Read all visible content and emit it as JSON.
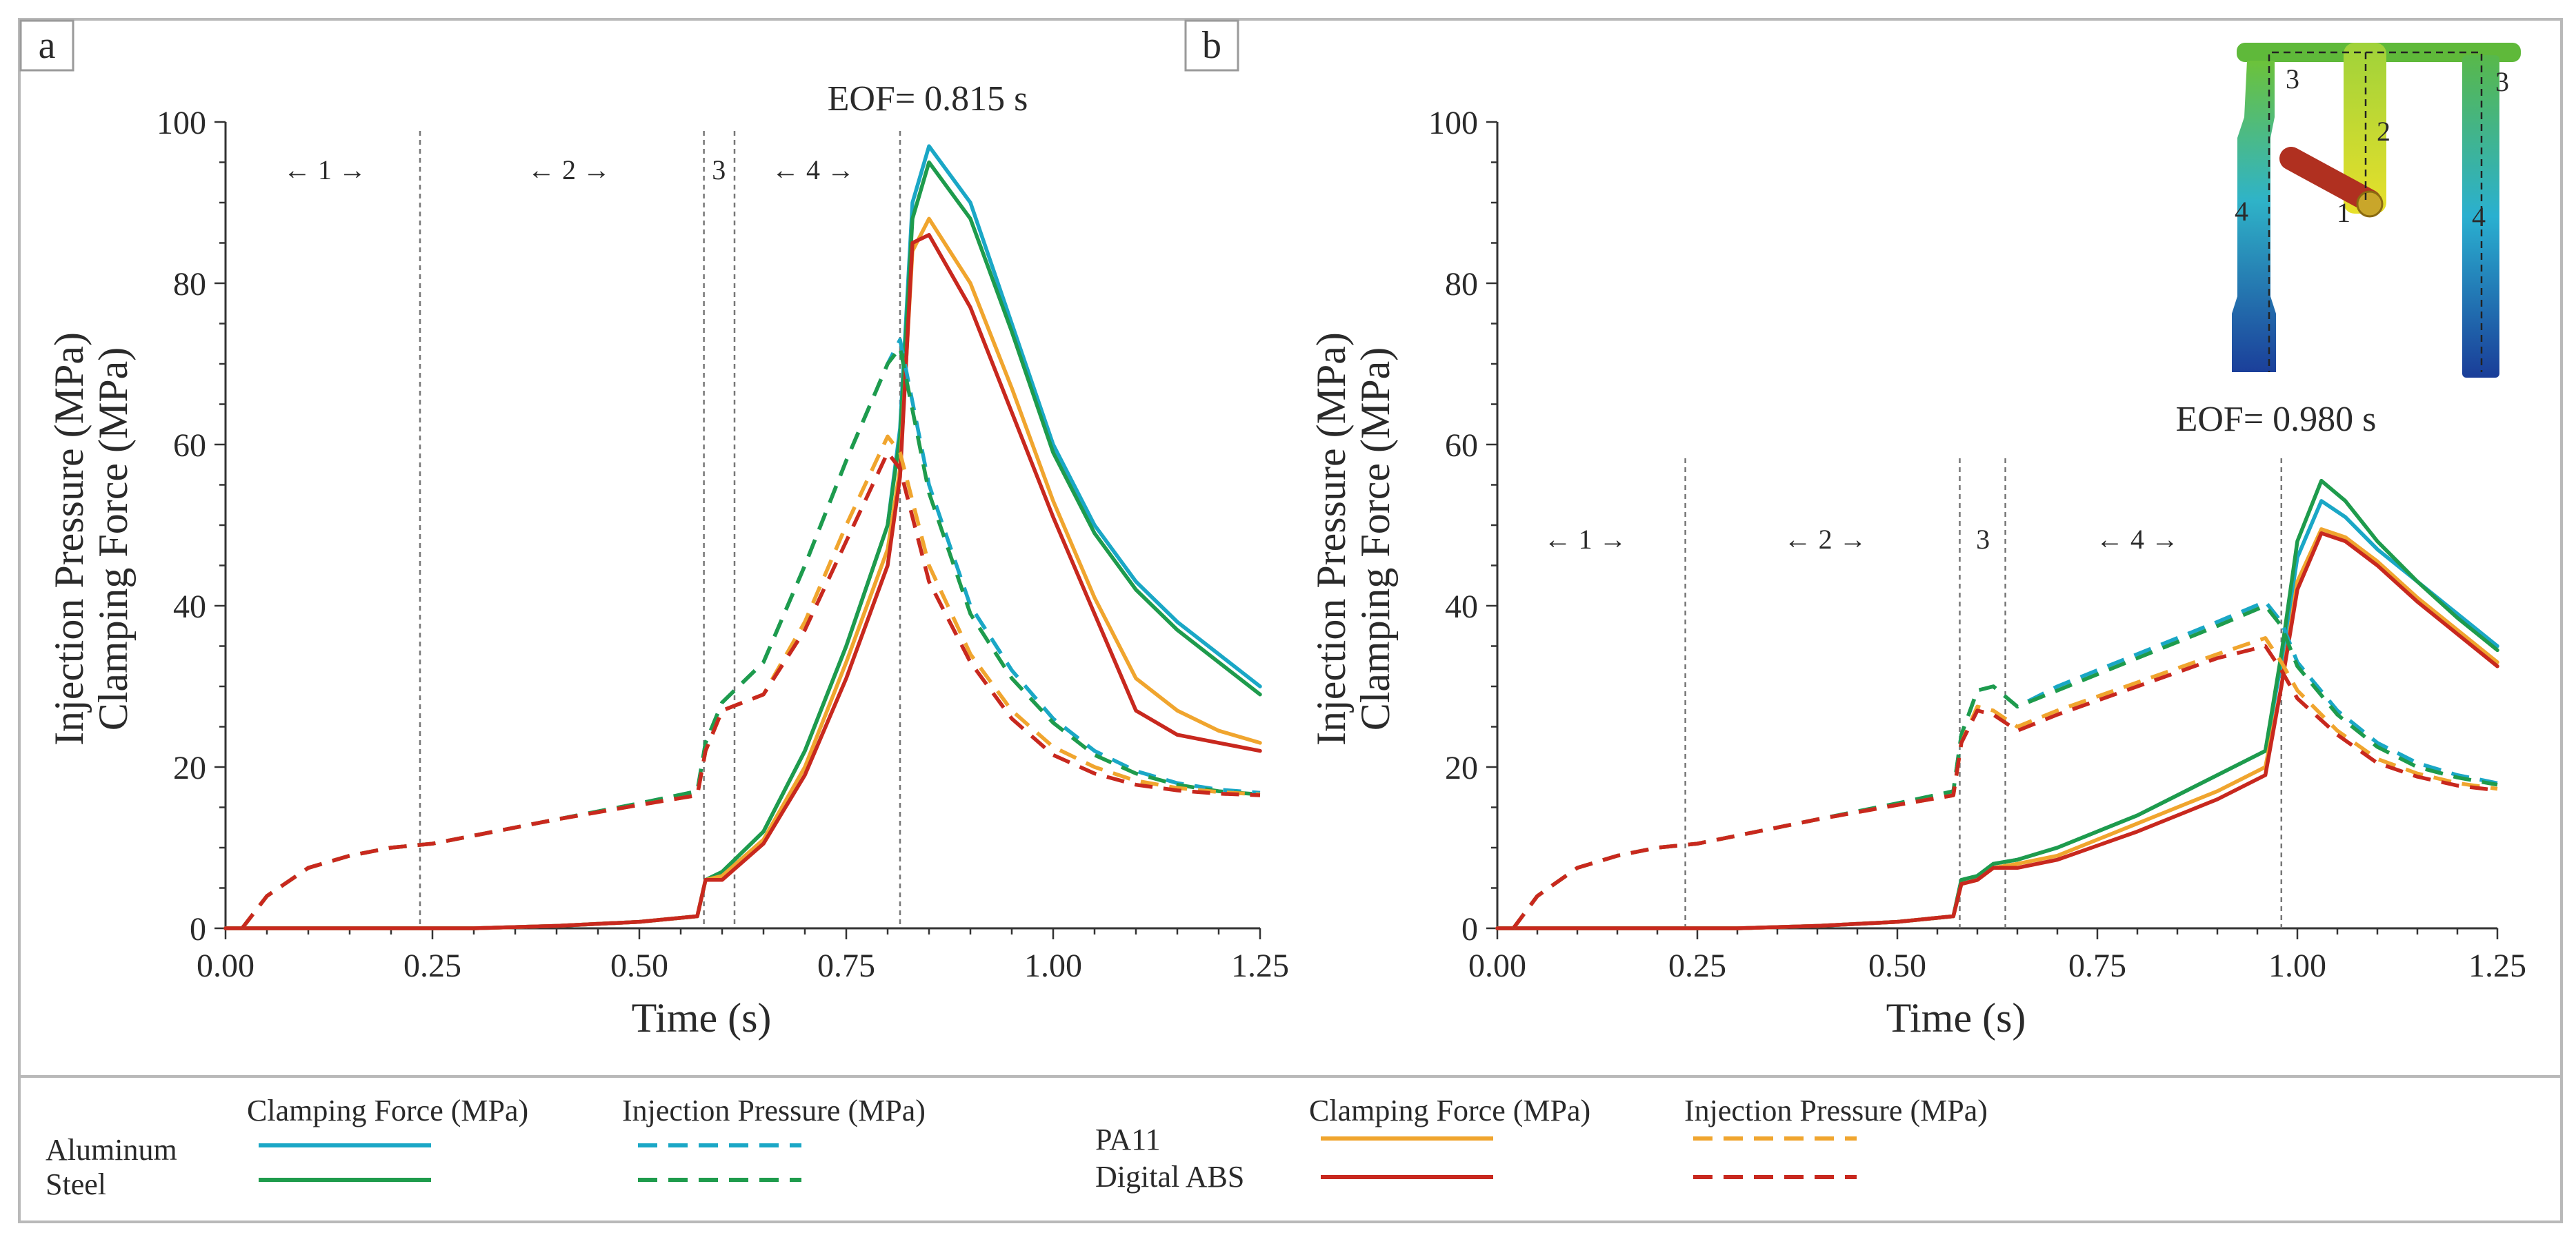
{
  "chart_data": [
    {
      "panel": "a",
      "type": "line",
      "eof_label": "EOF= 0.815 s",
      "xlabel": "Time (s)",
      "ylabel": [
        "Injection Pressure (MPa)",
        "Clamping Force (MPa)"
      ],
      "xlim": [
        0,
        1.25
      ],
      "ylim": [
        0,
        100
      ],
      "xticks": [
        "0.00",
        "0.25",
        "0.50",
        "0.75",
        "1.00",
        "1.25"
      ],
      "yticks": [
        "0",
        "20",
        "40",
        "60",
        "80",
        "100"
      ],
      "phase_lines": [
        0.235,
        0.578,
        0.615,
        0.815
      ],
      "phases": [
        {
          "label": "1",
          "x": 0.12
        },
        {
          "label": "2",
          "x": 0.415
        },
        {
          "label": "3",
          "x": 0.596
        },
        {
          "label": "4",
          "x": 0.71
        }
      ],
      "series": [
        {
          "name": "Aluminum Clamping Force (MPa)",
          "color": "#1aa7c6",
          "dash": false,
          "x": [
            0,
            0.2,
            0.3,
            0.4,
            0.5,
            0.57,
            0.58,
            0.6,
            0.65,
            0.7,
            0.75,
            0.8,
            0.815,
            0.83,
            0.85,
            0.9,
            0.95,
            1.0,
            1.05,
            1.1,
            1.15,
            1.2,
            1.25
          ],
          "y": [
            0,
            0,
            0,
            0.3,
            0.8,
            1.5,
            6,
            7,
            12,
            22,
            35,
            50,
            62,
            90,
            97,
            90,
            75,
            60,
            50,
            43,
            38,
            34,
            30
          ]
        },
        {
          "name": "Steel Clamping Force (MPa)",
          "color": "#1e9b4c",
          "dash": false,
          "x": [
            0,
            0.2,
            0.3,
            0.4,
            0.5,
            0.57,
            0.58,
            0.6,
            0.65,
            0.7,
            0.75,
            0.8,
            0.815,
            0.83,
            0.85,
            0.9,
            0.95,
            1.0,
            1.05,
            1.1,
            1.15,
            1.2,
            1.25
          ],
          "y": [
            0,
            0,
            0,
            0.3,
            0.8,
            1.5,
            6,
            7,
            12,
            22,
            35,
            50,
            61,
            88,
            95,
            88,
            74,
            59,
            49,
            42,
            37,
            33,
            29
          ]
        },
        {
          "name": "PA11 Clamping Force (MPa)",
          "color": "#f0a52e",
          "dash": false,
          "x": [
            0,
            0.2,
            0.3,
            0.4,
            0.5,
            0.57,
            0.58,
            0.6,
            0.65,
            0.7,
            0.75,
            0.8,
            0.815,
            0.83,
            0.85,
            0.9,
            0.95,
            1.0,
            1.05,
            1.1,
            1.15,
            1.2,
            1.25
          ],
          "y": [
            0,
            0,
            0,
            0.3,
            0.8,
            1.5,
            6,
            6.5,
            11,
            20,
            33,
            47,
            57,
            84,
            88,
            80,
            67,
            53,
            41,
            31,
            27,
            24.5,
            23
          ]
        },
        {
          "name": "Digital ABS Clamping Force (MPa)",
          "color": "#c8281e",
          "dash": false,
          "x": [
            0,
            0.2,
            0.3,
            0.4,
            0.5,
            0.57,
            0.58,
            0.6,
            0.65,
            0.7,
            0.75,
            0.8,
            0.815,
            0.83,
            0.85,
            0.9,
            0.95,
            1.0,
            1.05,
            1.1,
            1.15,
            1.2,
            1.25
          ],
          "y": [
            0,
            0,
            0,
            0.3,
            0.8,
            1.5,
            6,
            6,
            10.5,
            19,
            31,
            45,
            56,
            85,
            86,
            77,
            64,
            51,
            39,
            27,
            24,
            23,
            22
          ]
        },
        {
          "name": "Aluminum Injection Pressure (MPa)",
          "color": "#1aa7c6",
          "dash": true,
          "x": [
            0.02,
            0.05,
            0.1,
            0.15,
            0.2,
            0.25,
            0.3,
            0.4,
            0.5,
            0.57,
            0.58,
            0.6,
            0.65,
            0.7,
            0.75,
            0.8,
            0.815,
            0.85,
            0.9,
            0.95,
            1.0,
            1.05,
            1.1,
            1.15,
            1.2,
            1.25
          ],
          "y": [
            0,
            4,
            7.5,
            9,
            10,
            10.5,
            11.5,
            13.5,
            15.5,
            17,
            23,
            28,
            33,
            45,
            58,
            70,
            73,
            55,
            40,
            32,
            26,
            22,
            19.5,
            18,
            17.2,
            16.8
          ]
        },
        {
          "name": "Steel Injection Pressure (MPa)",
          "color": "#1e9b4c",
          "dash": true,
          "x": [
            0.02,
            0.05,
            0.1,
            0.15,
            0.2,
            0.25,
            0.3,
            0.4,
            0.5,
            0.57,
            0.58,
            0.6,
            0.65,
            0.7,
            0.75,
            0.8,
            0.815,
            0.85,
            0.9,
            0.95,
            1.0,
            1.05,
            1.1,
            1.15,
            1.2,
            1.25
          ],
          "y": [
            0,
            4,
            7.5,
            9,
            10,
            10.5,
            11.5,
            13.5,
            15.5,
            17,
            23,
            28,
            33,
            45,
            58,
            70,
            72,
            54,
            39,
            31,
            25.5,
            21.5,
            19.2,
            17.8,
            17.0,
            16.6
          ]
        },
        {
          "name": "PA11 Injection Pressure (MPa)",
          "color": "#f0a52e",
          "dash": true,
          "x": [
            0.02,
            0.05,
            0.1,
            0.15,
            0.2,
            0.25,
            0.3,
            0.4,
            0.5,
            0.57,
            0.58,
            0.6,
            0.65,
            0.7,
            0.75,
            0.8,
            0.815,
            0.85,
            0.9,
            0.95,
            1.0,
            1.05,
            1.1,
            1.15,
            1.2,
            1.25
          ],
          "y": [
            0,
            4,
            7.5,
            9,
            10,
            10.5,
            11.5,
            13.5,
            15.3,
            16.5,
            22,
            27,
            29,
            38,
            50,
            61,
            59,
            45,
            34,
            27,
            22.5,
            20,
            18.3,
            17.4,
            16.9,
            16.6
          ]
        },
        {
          "name": "Digital ABS Injection Pressure (MPa)",
          "color": "#c8281e",
          "dash": true,
          "x": [
            0.02,
            0.05,
            0.1,
            0.15,
            0.2,
            0.25,
            0.3,
            0.4,
            0.5,
            0.57,
            0.58,
            0.6,
            0.65,
            0.7,
            0.75,
            0.8,
            0.815,
            0.85,
            0.9,
            0.95,
            1.0,
            1.05,
            1.1,
            1.15,
            1.2,
            1.25
          ],
          "y": [
            0,
            4,
            7.5,
            9,
            10,
            10.5,
            11.5,
            13.5,
            15.3,
            16.5,
            22,
            27,
            29,
            37,
            48,
            59,
            57,
            43,
            33,
            26,
            21.5,
            19.2,
            17.8,
            17.1,
            16.7,
            16.5
          ]
        }
      ]
    },
    {
      "panel": "b",
      "type": "line",
      "eof_label": "EOF= 0.980 s",
      "xlabel": "Time (s)",
      "ylabel": [
        "Injection Pressure (MPa)",
        "Clamping Force (MPa)"
      ],
      "xlim": [
        0,
        1.25
      ],
      "ylim": [
        0,
        100
      ],
      "xticks": [
        "0.00",
        "0.25",
        "0.50",
        "0.75",
        "1.00",
        "1.25"
      ],
      "yticks": [
        "0",
        "20",
        "40",
        "60",
        "80",
        "100"
      ],
      "phase_lines": [
        0.235,
        0.578,
        0.635,
        0.98
      ],
      "phases": [
        {
          "label": "1",
          "x": 0.11
        },
        {
          "label": "2",
          "x": 0.41
        },
        {
          "label": "3",
          "x": 0.607
        },
        {
          "label": "4",
          "x": 0.8
        }
      ],
      "inset_labels": [
        "1",
        "2",
        "3",
        "3",
        "4",
        "4"
      ],
      "series": [
        {
          "name": "Aluminum Clamping Force (MPa)",
          "color": "#1aa7c6",
          "dash": false,
          "x": [
            0,
            0.2,
            0.3,
            0.4,
            0.5,
            0.57,
            0.58,
            0.6,
            0.62,
            0.65,
            0.7,
            0.8,
            0.9,
            0.96,
            0.98,
            1.0,
            1.03,
            1.06,
            1.1,
            1.15,
            1.2,
            1.25
          ],
          "y": [
            0,
            0,
            0,
            0.3,
            0.8,
            1.5,
            6,
            6.5,
            8,
            8.5,
            10,
            14,
            19,
            22,
            33,
            46,
            53,
            51,
            47,
            43,
            39,
            35
          ]
        },
        {
          "name": "Steel Clamping Force (MPa)",
          "color": "#1e9b4c",
          "dash": false,
          "x": [
            0,
            0.2,
            0.3,
            0.4,
            0.5,
            0.57,
            0.58,
            0.6,
            0.62,
            0.65,
            0.7,
            0.8,
            0.9,
            0.96,
            0.98,
            1.0,
            1.03,
            1.06,
            1.1,
            1.15,
            1.2,
            1.25
          ],
          "y": [
            0,
            0,
            0,
            0.3,
            0.8,
            1.5,
            6,
            6.5,
            8,
            8.5,
            10,
            14,
            19,
            22,
            34,
            48,
            55.5,
            53,
            48,
            43,
            38.5,
            34.5
          ]
        },
        {
          "name": "PA11 Clamping Force (MPa)",
          "color": "#f0a52e",
          "dash": false,
          "x": [
            0,
            0.2,
            0.3,
            0.4,
            0.5,
            0.57,
            0.58,
            0.6,
            0.62,
            0.65,
            0.7,
            0.8,
            0.9,
            0.96,
            0.98,
            1.0,
            1.03,
            1.06,
            1.1,
            1.15,
            1.2,
            1.25
          ],
          "y": [
            0,
            0,
            0,
            0.3,
            0.8,
            1.5,
            5.5,
            6,
            7.5,
            8,
            9,
            13,
            17,
            20,
            30,
            43,
            49.5,
            48.5,
            45.5,
            41,
            37,
            33
          ]
        },
        {
          "name": "Digital ABS Clamping Force (MPa)",
          "color": "#c8281e",
          "dash": false,
          "x": [
            0,
            0.2,
            0.3,
            0.4,
            0.5,
            0.57,
            0.58,
            0.6,
            0.62,
            0.65,
            0.7,
            0.8,
            0.9,
            0.96,
            0.98,
            1.0,
            1.03,
            1.06,
            1.1,
            1.15,
            1.2,
            1.25
          ],
          "y": [
            0,
            0,
            0,
            0.3,
            0.8,
            1.5,
            5.5,
            6,
            7.5,
            7.5,
            8.5,
            12,
            16,
            19,
            30,
            42,
            49,
            48,
            45,
            40.5,
            36.5,
            32.5
          ]
        },
        {
          "name": "Aluminum Injection Pressure (MPa)",
          "color": "#1aa7c6",
          "dash": true,
          "x": [
            0.02,
            0.05,
            0.1,
            0.15,
            0.2,
            0.25,
            0.3,
            0.4,
            0.5,
            0.57,
            0.58,
            0.6,
            0.62,
            0.65,
            0.7,
            0.8,
            0.9,
            0.96,
            0.98,
            1.0,
            1.05,
            1.1,
            1.15,
            1.2,
            1.25
          ],
          "y": [
            0,
            4,
            7.5,
            9,
            10,
            10.5,
            11.5,
            13.5,
            15.5,
            17,
            24,
            29.5,
            30,
            27.5,
            30,
            34,
            38,
            40.5,
            38,
            33,
            27,
            23,
            20.5,
            19,
            18
          ]
        },
        {
          "name": "Steel Injection Pressure (MPa)",
          "color": "#1e9b4c",
          "dash": true,
          "x": [
            0.02,
            0.05,
            0.1,
            0.15,
            0.2,
            0.25,
            0.3,
            0.4,
            0.5,
            0.57,
            0.58,
            0.6,
            0.62,
            0.65,
            0.7,
            0.8,
            0.9,
            0.96,
            0.98,
            1.0,
            1.05,
            1.1,
            1.15,
            1.2,
            1.25
          ],
          "y": [
            0,
            4,
            7.5,
            9,
            10,
            10.5,
            11.5,
            13.5,
            15.5,
            17,
            24,
            29.5,
            30,
            27.5,
            29.5,
            33.5,
            37.5,
            40,
            37.5,
            32.5,
            26.5,
            22.5,
            20,
            18.7,
            17.8
          ]
        },
        {
          "name": "PA11 Injection Pressure (MPa)",
          "color": "#f0a52e",
          "dash": true,
          "x": [
            0.02,
            0.05,
            0.1,
            0.15,
            0.2,
            0.25,
            0.3,
            0.4,
            0.5,
            0.57,
            0.58,
            0.6,
            0.62,
            0.65,
            0.7,
            0.8,
            0.9,
            0.96,
            0.98,
            1.0,
            1.05,
            1.1,
            1.15,
            1.2,
            1.25
          ],
          "y": [
            0,
            4,
            7.5,
            9,
            10,
            10.5,
            11.5,
            13.5,
            15.3,
            16.5,
            23,
            27.5,
            27,
            25,
            27,
            30.5,
            34,
            36,
            33,
            29.5,
            24.5,
            21,
            19.2,
            18,
            17.3
          ]
        },
        {
          "name": "Digital ABS Injection Pressure (MPa)",
          "color": "#c8281e",
          "dash": true,
          "x": [
            0.02,
            0.05,
            0.1,
            0.15,
            0.2,
            0.25,
            0.3,
            0.4,
            0.5,
            0.57,
            0.58,
            0.6,
            0.62,
            0.65,
            0.7,
            0.8,
            0.9,
            0.96,
            0.98,
            1.0,
            1.05,
            1.1,
            1.15,
            1.2,
            1.25
          ],
          "y": [
            0,
            4,
            7.5,
            9,
            10,
            10.5,
            11.5,
            13.5,
            15.3,
            16.5,
            23,
            27,
            26.5,
            24.5,
            26.5,
            30,
            33.5,
            35,
            32,
            28.5,
            24,
            20.5,
            18.8,
            17.7,
            17.1
          ]
        }
      ]
    }
  ],
  "legend": {
    "col_clamp": "Clamping Force (MPa)",
    "col_inject": "Injection Pressure (MPa)",
    "group1": [
      {
        "material": "Aluminum",
        "color": "#1aa7c6"
      },
      {
        "material": "Steel",
        "color": "#1e9b4c"
      }
    ],
    "group2": [
      {
        "material": "PA11",
        "color": "#f0a52e"
      },
      {
        "material": "Digital ABS",
        "color": "#c8281e"
      }
    ]
  }
}
